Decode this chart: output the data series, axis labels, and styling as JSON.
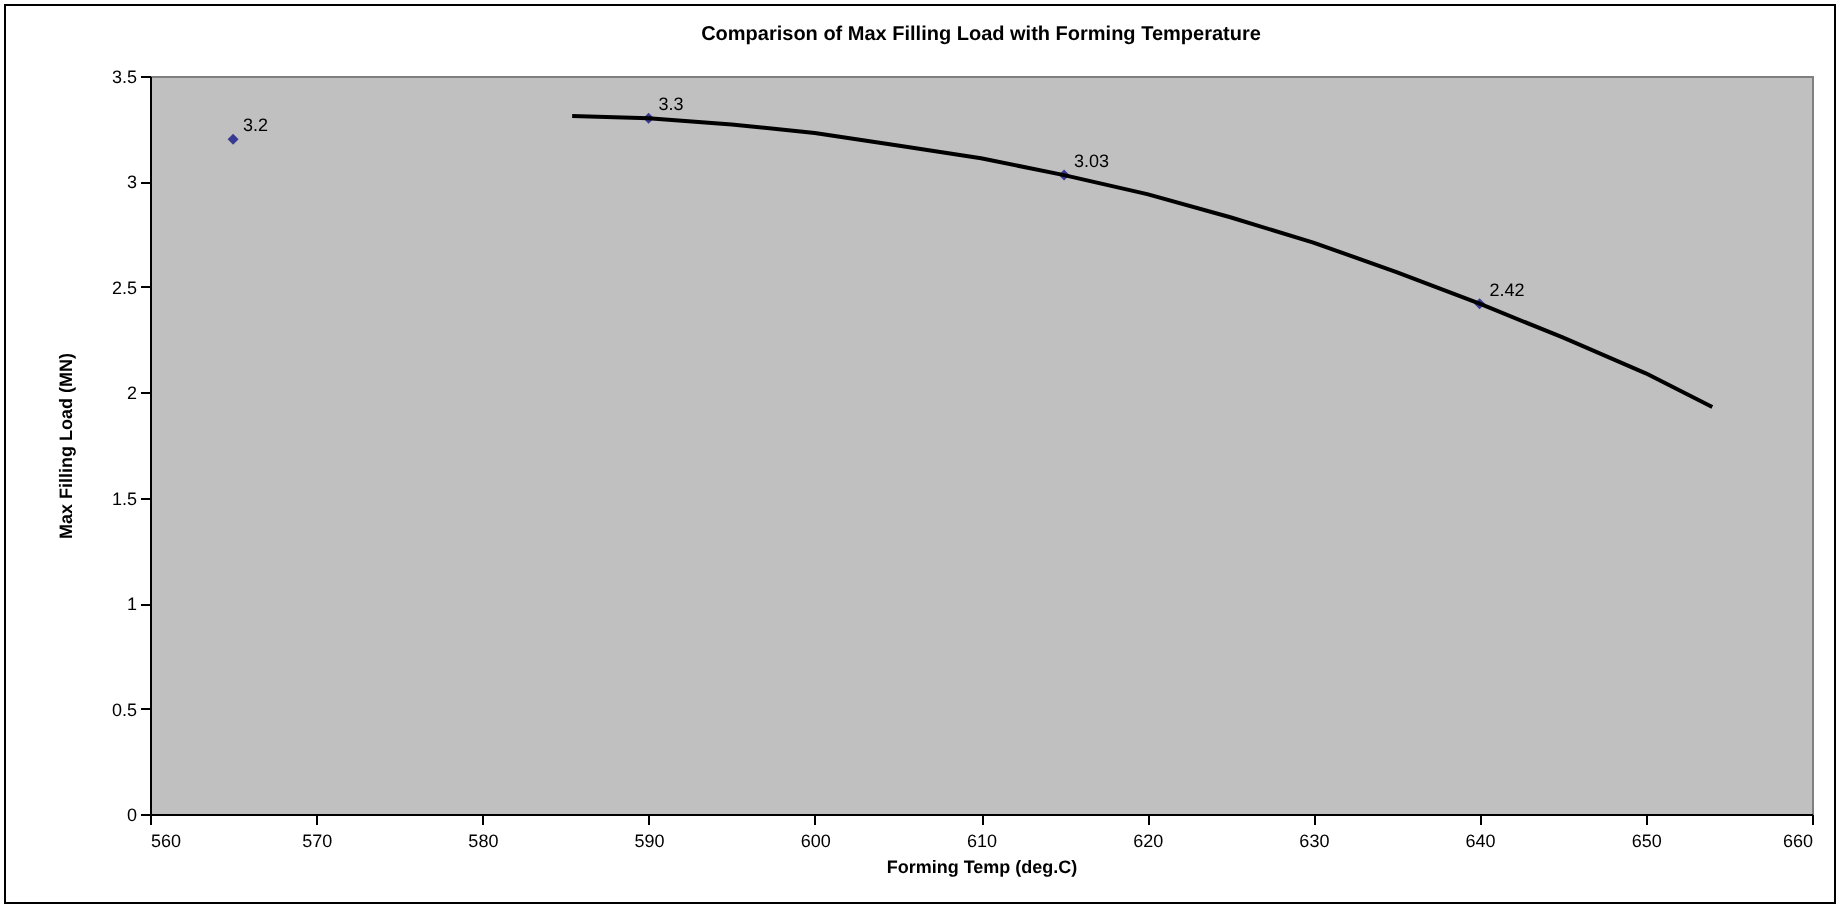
{
  "chart_data": {
    "type": "scatter",
    "title": "Comparison of Max Filling Load with Forming Temperature",
    "xlabel": "Forming Temp (deg.C)",
    "ylabel": "Max Filling Load (MN)",
    "series": [
      {
        "color": "#000080",
        "x": [
          565,
          590,
          615,
          640
        ],
        "values": [
          3.2,
          3.3,
          3.03,
          2.42
        ],
        "value_labels": [
          "3.2",
          "3.3",
          "3.03",
          "2.42"
        ],
        "marker": "diamond"
      },
      {
        "type": "line",
        "color": "#000000",
        "x": [
          585.4,
          590,
          595,
          600,
          605,
          610,
          615,
          620,
          625,
          630,
          635,
          640,
          645,
          650,
          654
        ],
        "values": [
          3.31,
          3.3,
          3.27,
          3.23,
          3.17,
          3.11,
          3.03,
          2.94,
          2.83,
          2.71,
          2.57,
          2.42,
          2.26,
          2.09,
          1.93
        ],
        "marker": "none",
        "line_style": "solid"
      }
    ],
    "xlim": [
      560,
      660
    ],
    "xticks": [
      560,
      570,
      580,
      590,
      600,
      610,
      620,
      630,
      640,
      650,
      660
    ],
    "ylim": [
      0,
      3.5
    ],
    "yticks": [
      0,
      0.5,
      1,
      1.5,
      2,
      2.5,
      3,
      3.5
    ],
    "grid": false
  }
}
